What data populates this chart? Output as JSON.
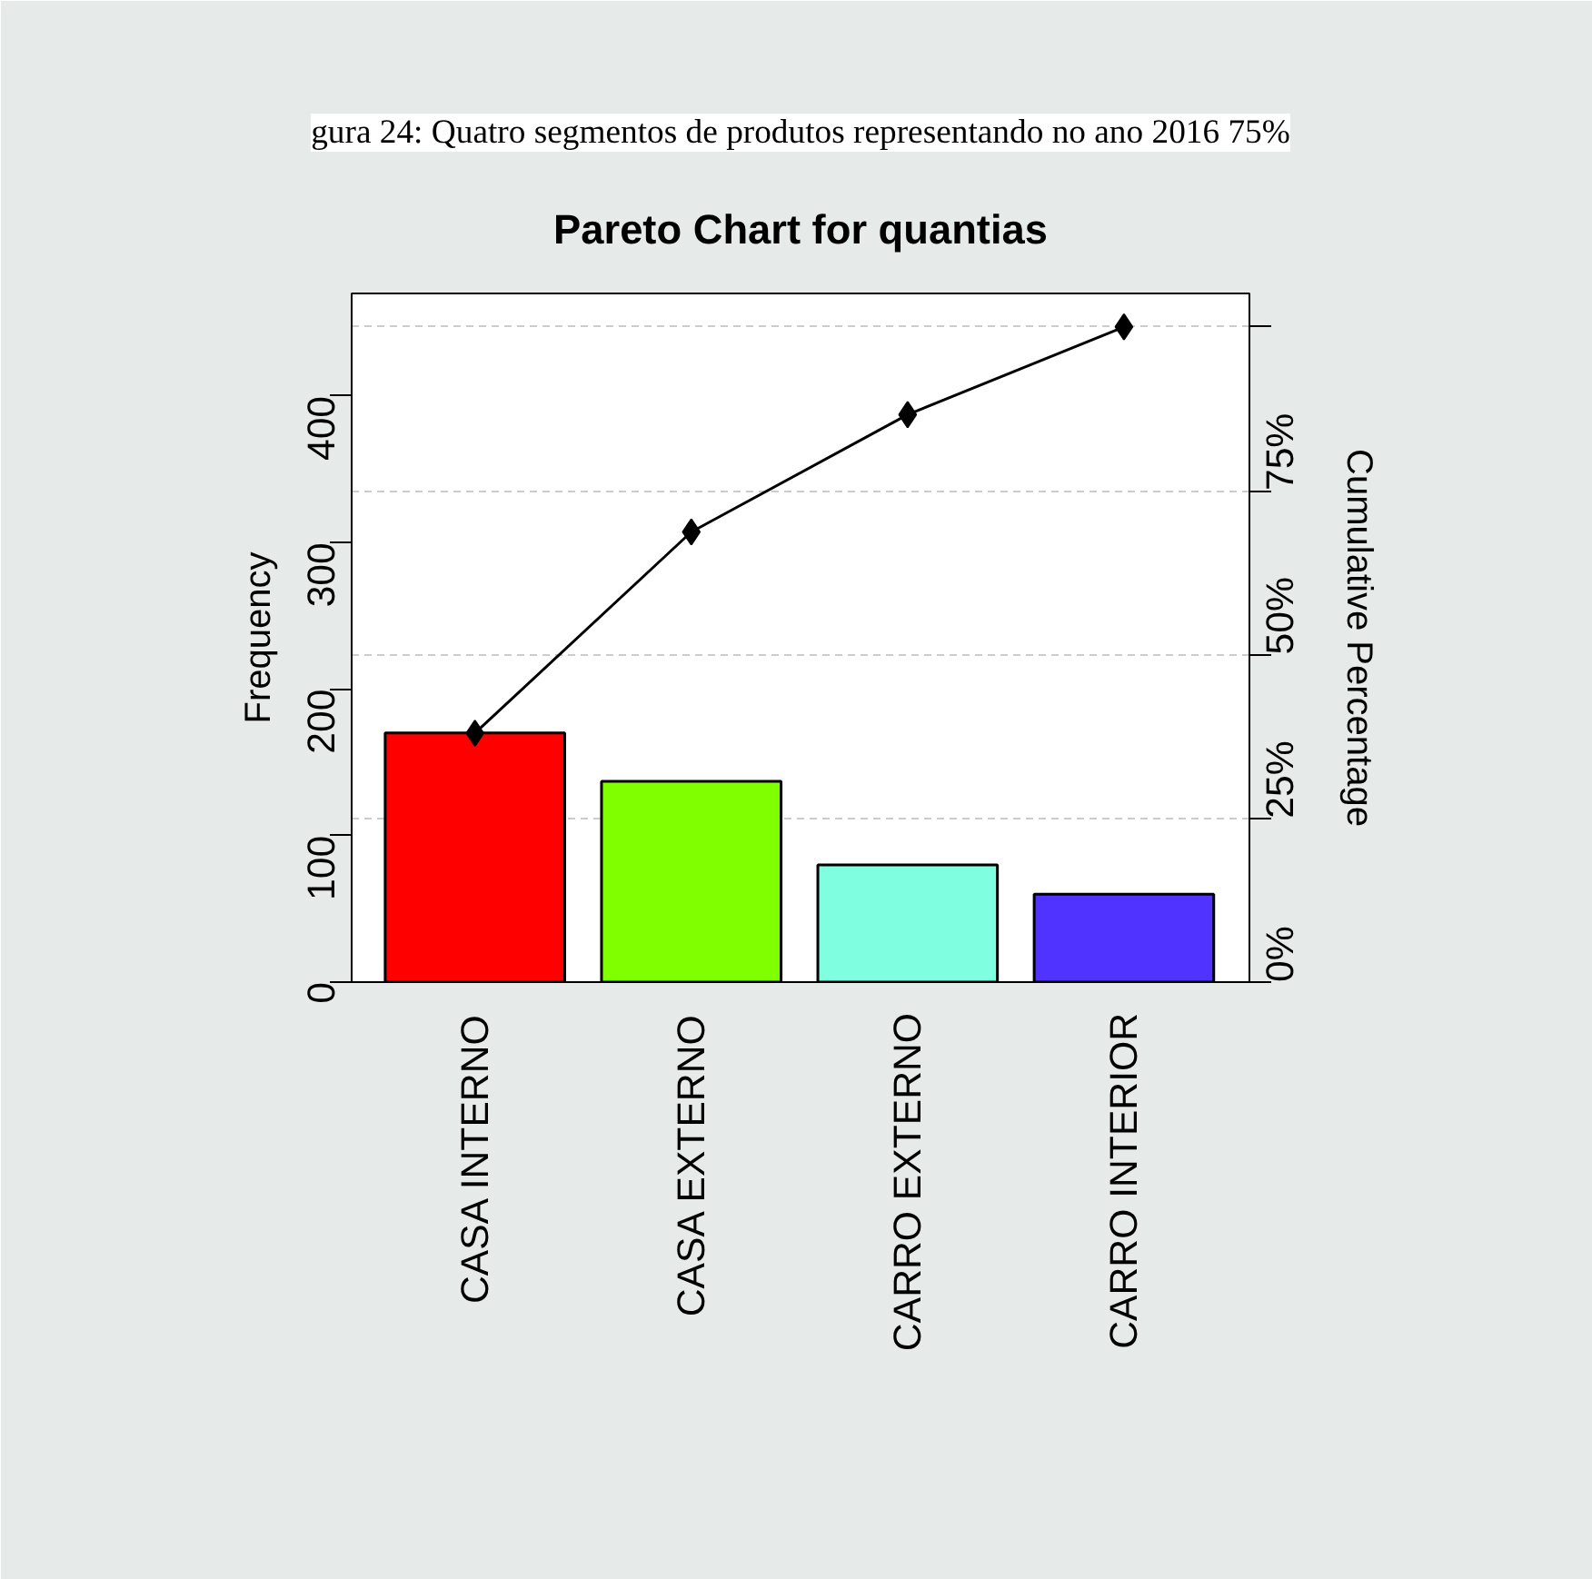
{
  "chart_data": {
    "type": "bar",
    "title": "Pareto Chart for quantias",
    "categories": [
      "CASA INTERNO",
      "CASA EXTERNO",
      "CARRO EXTERNO",
      "CARRO INTERIOR"
    ],
    "series": [
      {
        "colors": [
          "#ff0000",
          "#80ff00",
          "#80ffe0",
          "#5033ff"
        ],
        "values": [
          170,
          137,
          80,
          60
        ]
      },
      {
        "type": "line",
        "axis": "y2",
        "color": "#000000",
        "values": [
          38.0,
          68.7,
          86.6,
          100
        ]
      }
    ],
    "ylabel": "Frequency",
    "y2label": "Cumulative Percentage",
    "ylim": [
      0,
      470
    ],
    "yticks": [
      0,
      100,
      200,
      300,
      400
    ],
    "y2lim": [
      0,
      105.1
    ],
    "y2ticks": [
      {
        "value": 0,
        "label": "0%"
      },
      {
        "value": 25,
        "label": "25%"
      },
      {
        "value": 50,
        "label": "50%"
      },
      {
        "value": 75,
        "label": "75%"
      },
      {
        "value": 100,
        "label": null
      }
    ],
    "grid": "y",
    "marker": "diamond",
    "line_style": "solid",
    "annotations": [
      "gura 24: Quatro segmentos de produtos representando no ano 2016 75%"
    ]
  }
}
